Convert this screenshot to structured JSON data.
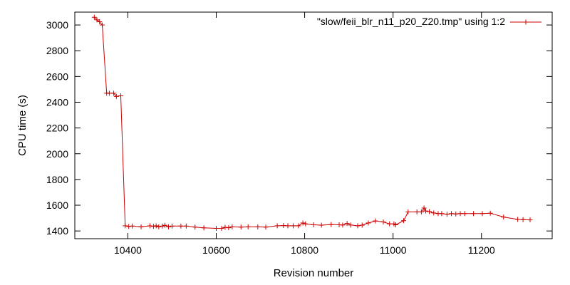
{
  "chart_data": {
    "type": "line",
    "title": "",
    "xlabel": "Revision number",
    "ylabel": "CPU time (s)",
    "xlim": [
      10280,
      11360
    ],
    "ylim": [
      1340,
      3100
    ],
    "x_ticks": [
      10400,
      10600,
      10800,
      11000,
      11200
    ],
    "y_ticks": [
      1400,
      1600,
      1800,
      2000,
      2200,
      2400,
      2600,
      2800,
      3000
    ],
    "grid": false,
    "legend_position": "top-right",
    "series": [
      {
        "name": "\"slow/feii_blr_n11_p20_Z20.tmp\" using 1:2",
        "color": "#cc0000",
        "marker": "plus",
        "points": [
          [
            10324,
            3060
          ],
          [
            10330,
            3040
          ],
          [
            10336,
            3025
          ],
          [
            10342,
            3000
          ],
          [
            10352,
            2470
          ],
          [
            10358,
            2470
          ],
          [
            10368,
            2470
          ],
          [
            10374,
            2445
          ],
          [
            10384,
            2450
          ],
          [
            10394,
            1440
          ],
          [
            10402,
            1435
          ],
          [
            10410,
            1438
          ],
          [
            10430,
            1432
          ],
          [
            10450,
            1440
          ],
          [
            10458,
            1436
          ],
          [
            10464,
            1440
          ],
          [
            10470,
            1432
          ],
          [
            10478,
            1438
          ],
          [
            10484,
            1444
          ],
          [
            10492,
            1432
          ],
          [
            10500,
            1438
          ],
          [
            10520,
            1438
          ],
          [
            10532,
            1438
          ],
          [
            10552,
            1430
          ],
          [
            10572,
            1424
          ],
          [
            10600,
            1420
          ],
          [
            10612,
            1420
          ],
          [
            10620,
            1428
          ],
          [
            10628,
            1425
          ],
          [
            10636,
            1432
          ],
          [
            10656,
            1430
          ],
          [
            10672,
            1432
          ],
          [
            10694,
            1432
          ],
          [
            10712,
            1430
          ],
          [
            10738,
            1440
          ],
          [
            10752,
            1442
          ],
          [
            10762,
            1440
          ],
          [
            10774,
            1440
          ],
          [
            10786,
            1440
          ],
          [
            10796,
            1462
          ],
          [
            10802,
            1455
          ],
          [
            10820,
            1448
          ],
          [
            10838,
            1445
          ],
          [
            10860,
            1450
          ],
          [
            10878,
            1448
          ],
          [
            10886,
            1446
          ],
          [
            10896,
            1458
          ],
          [
            10904,
            1446
          ],
          [
            10920,
            1440
          ],
          [
            10930,
            1445
          ],
          [
            10944,
            1462
          ],
          [
            10960,
            1478
          ],
          [
            10978,
            1470
          ],
          [
            10992,
            1455
          ],
          [
            11002,
            1455
          ],
          [
            11006,
            1448
          ],
          [
            11024,
            1480
          ],
          [
            11034,
            1548
          ],
          [
            11054,
            1548
          ],
          [
            11064,
            1548
          ],
          [
            11070,
            1578
          ],
          [
            11074,
            1555
          ],
          [
            11082,
            1550
          ],
          [
            11092,
            1540
          ],
          [
            11102,
            1535
          ],
          [
            11110,
            1535
          ],
          [
            11122,
            1530
          ],
          [
            11132,
            1535
          ],
          [
            11142,
            1532
          ],
          [
            11152,
            1535
          ],
          [
            11162,
            1535
          ],
          [
            11182,
            1535
          ],
          [
            11202,
            1535
          ],
          [
            11220,
            1538
          ],
          [
            11250,
            1508
          ],
          [
            11282,
            1490
          ],
          [
            11294,
            1488
          ],
          [
            11310,
            1486
          ]
        ]
      }
    ]
  }
}
